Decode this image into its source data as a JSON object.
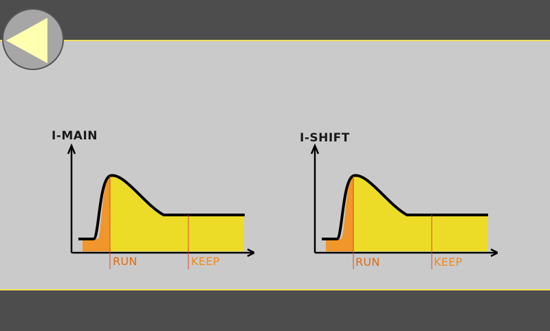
{
  "navigation": {
    "back_button_icon": "back-arrow-icon"
  },
  "graphs": [
    {
      "title": "I-MAIN",
      "phases": {
        "run_label": "RUN",
        "keep_label": "KEEP"
      }
    },
    {
      "title": "I-SHIFT",
      "phases": {
        "run_label": "RUN",
        "keep_label": "KEEP"
      }
    }
  ],
  "colors": {
    "bar_background": "#4d4d4d",
    "panel_background": "#cacaca",
    "accent_line": "#f0e060",
    "run_fill": "#f0962a",
    "keep_fill": "#ecdc28",
    "marker_line": "#d84a2a",
    "back_arrow": "#ffffb0"
  }
}
